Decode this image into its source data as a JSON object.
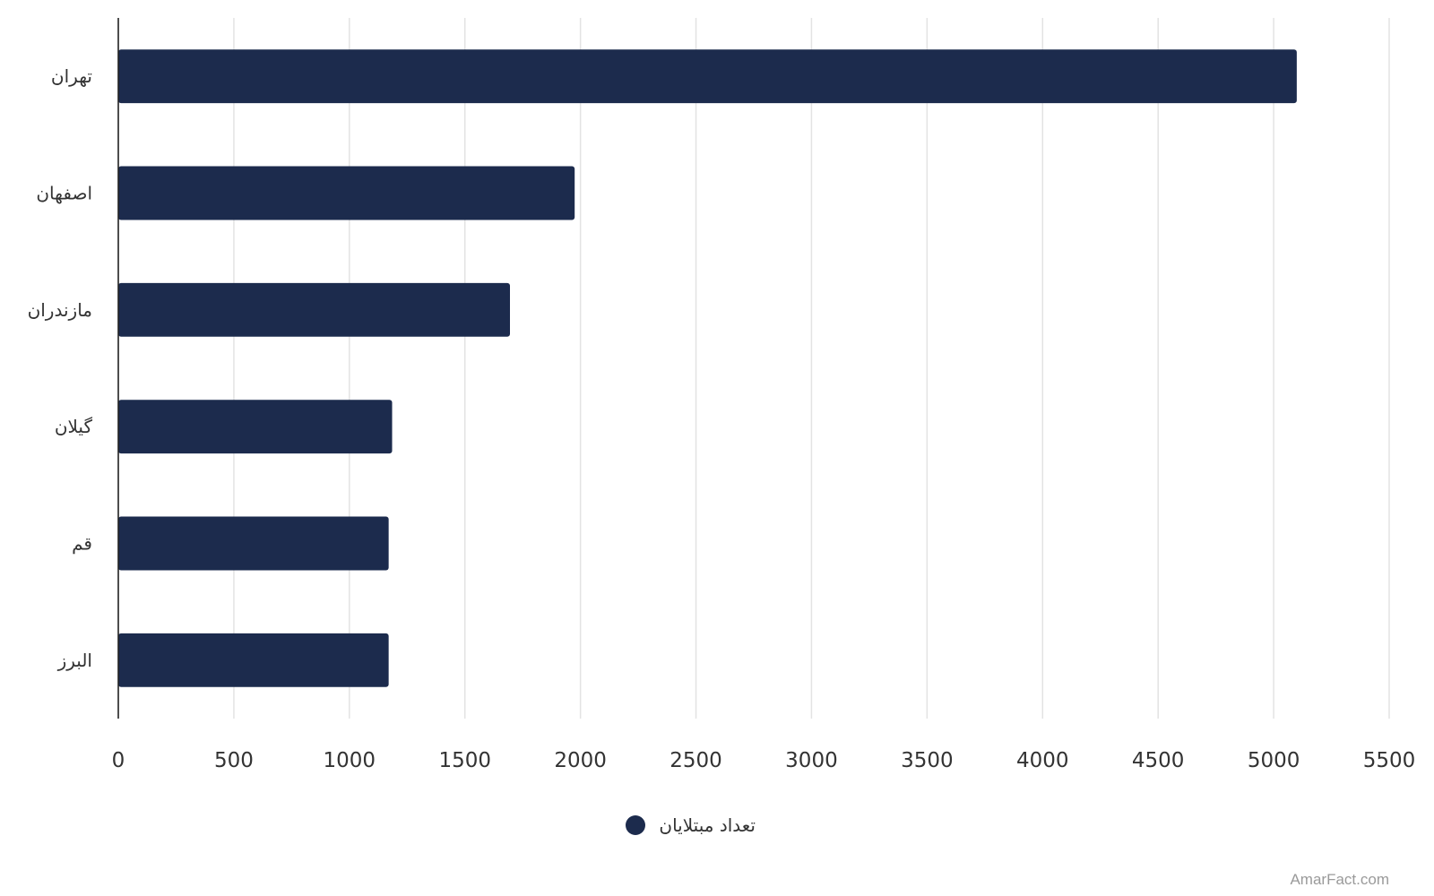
{
  "chart_data": {
    "type": "bar",
    "orientation": "horizontal",
    "categories": [
      "تهران",
      "اصفهان",
      "مازندران",
      "گیلان",
      "قم",
      "البرز"
    ],
    "series": [
      {
        "name": "تعداد مبتلایان",
        "values": [
          5100,
          1975,
          1695,
          1185,
          1170,
          1170
        ],
        "color": "#1c2b4d"
      }
    ],
    "xlim": [
      0,
      5500
    ],
    "xticks": [
      0,
      500,
      1000,
      1500,
      2000,
      2500,
      3000,
      3500,
      4000,
      4500,
      5000,
      5500
    ],
    "grid": true,
    "legend_position": "bottom-center"
  },
  "watermark": "AmarFact.com"
}
